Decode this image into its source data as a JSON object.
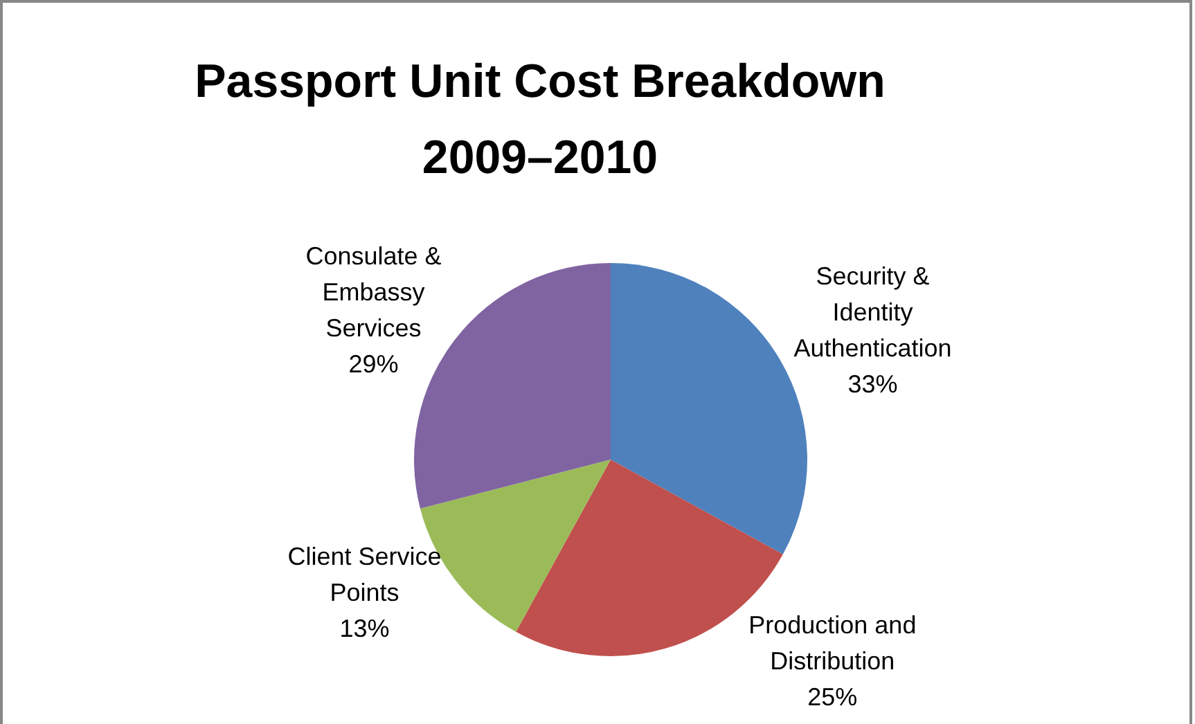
{
  "chart_data": {
    "type": "pie",
    "title": "Passport Unit Cost Breakdown 2009–2010",
    "categories": [
      "Security & Identity Authentication",
      "Production and Distribution",
      "Client Service Points",
      "Consulate & Embassy Services"
    ],
    "values": [
      33,
      25,
      13,
      29
    ],
    "colors": [
      "#4f81bd",
      "#c0504d",
      "#9bbb59",
      "#8064a2"
    ],
    "value_labels": [
      "33%",
      "25%",
      "13%",
      "29%"
    ],
    "legend": false
  }
}
